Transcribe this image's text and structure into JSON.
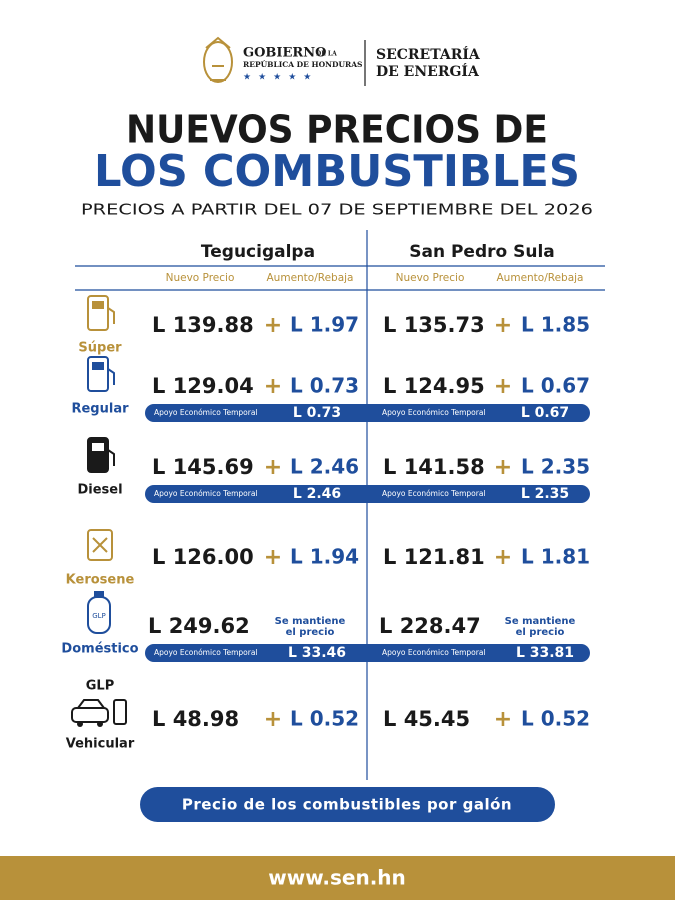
{
  "header": {
    "org_line1": "GOBIERNO",
    "org_line1_small": "DE LA",
    "org_line2": "REPÚBLICA DE HONDURAS",
    "dept_line1": "SECRETARÍA",
    "dept_line2": "DE ENERGÍA"
  },
  "title": {
    "line1": "NUEVOS PRECIOS DE",
    "line2": "LOS COMBUSTIBLES",
    "subtitle": "PRECIOS A PARTIR DEL 07 DE SEPTIEMBRE DEL 2026"
  },
  "cities": [
    {
      "name": "Tegucigalpa",
      "col1": "Nuevo Precio",
      "col2": "Aumento/Rebaja"
    },
    {
      "name": "San Pedro Sula",
      "col1": "Nuevo Precio",
      "col2": "Aumento/Rebaja"
    }
  ],
  "increase_sign": "+",
  "support_label": "Apoyo Económico Temporal",
  "fuels": [
    {
      "name": "Súper",
      "prices": [
        {
          "price": "L 139.88",
          "change": "L 1.97"
        },
        {
          "price": "L 135.73",
          "change": "L 1.85"
        }
      ]
    },
    {
      "name": "Regular",
      "prices": [
        {
          "price": "L 129.04",
          "change": "L 0.73",
          "support": "L 0.73"
        },
        {
          "price": "L 124.95",
          "change": "L 0.67",
          "support": "L 0.67"
        }
      ]
    },
    {
      "name": "Diesel",
      "prices": [
        {
          "price": "L 145.69",
          "change": "L 2.46",
          "support": "L 2.46"
        },
        {
          "price": "L 141.58",
          "change": "L 2.35",
          "support": "L 2.35"
        }
      ]
    },
    {
      "name": "Kerosene",
      "prices": [
        {
          "price": "L 126.00",
          "change": "L 1.94"
        },
        {
          "price": "L 121.81",
          "change": "L 1.81"
        }
      ]
    },
    {
      "name": "Doméstico",
      "icon_text": "GLP",
      "prices": [
        {
          "price": "L 249.62",
          "note_lines": [
            "Se mantiene",
            "el precio"
          ],
          "support": "L 33.46"
        },
        {
          "price": "L 228.47",
          "note_lines": [
            "Se mantiene",
            "el precio"
          ],
          "support": "L 33.81"
        }
      ]
    },
    {
      "name": "Vehicular",
      "label_top": "GLP",
      "prices": [
        {
          "price": "L 48.98",
          "change": "L 0.52"
        },
        {
          "price": "L 45.45",
          "change": "L 0.52"
        }
      ]
    }
  ],
  "footer": {
    "note": "Precio de los combustibles por galón",
    "website": "www.sen.hn"
  }
}
